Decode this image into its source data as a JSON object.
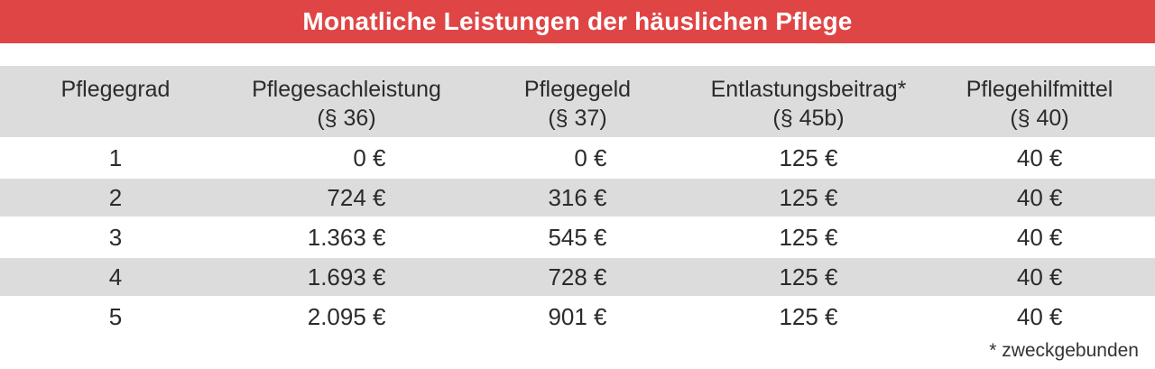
{
  "title": "Monatliche Leistungen der häuslichen Pflege",
  "header": {
    "cols": [
      {
        "line1": "Pflegegrad",
        "line2": ""
      },
      {
        "line1": "Pflegesachleistung",
        "line2": "(§ 36)"
      },
      {
        "line1": "Pflegegeld",
        "line2": "(§ 37)"
      },
      {
        "line1": "Entlastungsbeitrag*",
        "line2": "(§ 45b)"
      },
      {
        "line1": "Pflegehilfmittel",
        "line2": "(§ 40)"
      }
    ]
  },
  "chart_data": {
    "type": "table",
    "title": "Monatliche Leistungen der häuslichen Pflege",
    "columns": [
      "Pflegegrad",
      "Pflegesachleistung (§ 36)",
      "Pflegegeld (§ 37)",
      "Entlastungsbeitrag* (§ 45b)",
      "Pflegehilfmittel (§ 40)"
    ],
    "rows": [
      [
        "1",
        "0 €",
        "0 €",
        "125 €",
        "40 €"
      ],
      [
        "2",
        "724 €",
        "316 €",
        "125 €",
        "40 €"
      ],
      [
        "3",
        "1.363 €",
        "545 €",
        "125 €",
        "40 €"
      ],
      [
        "4",
        "1.693 €",
        "728 €",
        "125 €",
        "40 €"
      ],
      [
        "5",
        "2.095 €",
        "901 €",
        "125 €",
        "40 €"
      ]
    ],
    "footnote": "* zweckgebunden"
  },
  "colors": {
    "banner": "#e04545",
    "row_alt": "#dcdcdc",
    "text": "#2b2b2b",
    "title_text": "#ffffff"
  }
}
